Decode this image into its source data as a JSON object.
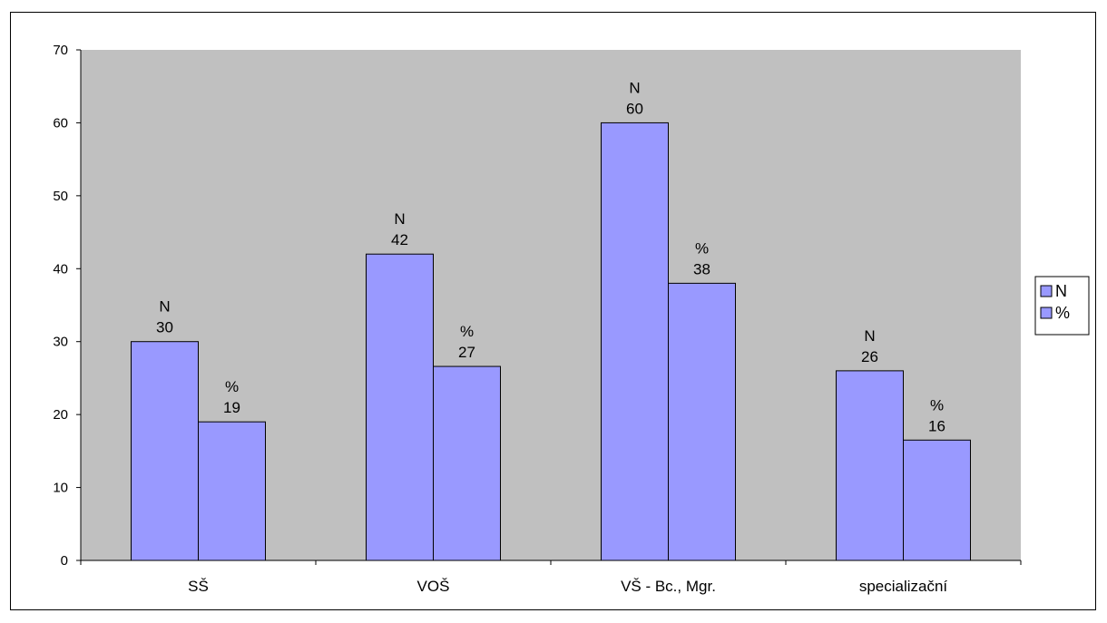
{
  "chart_data": {
    "type": "bar",
    "categories": [
      "SŠ",
      "VOŠ",
      "VŠ - Bc., Mgr.",
      "specializační"
    ],
    "series": [
      {
        "name": "N",
        "values": [
          30,
          42,
          60,
          26
        ],
        "labels": [
          "30",
          "42",
          "60",
          "26"
        ]
      },
      {
        "name": "%",
        "values": [
          19,
          26.6,
          38,
          16.5
        ],
        "labels": [
          "19",
          "27",
          "38",
          "16"
        ]
      }
    ],
    "ylim": [
      0,
      70
    ],
    "yticks": [
      "0",
      "10",
      "20",
      "30",
      "40",
      "50",
      "60",
      "70"
    ],
    "grid": false,
    "legend_position": "right",
    "title": "",
    "xlabel": "",
    "ylabel": ""
  },
  "colors": {
    "bar_fill": "#9999ff",
    "plot_bg": "#c0c0c0",
    "axis": "#000000"
  }
}
